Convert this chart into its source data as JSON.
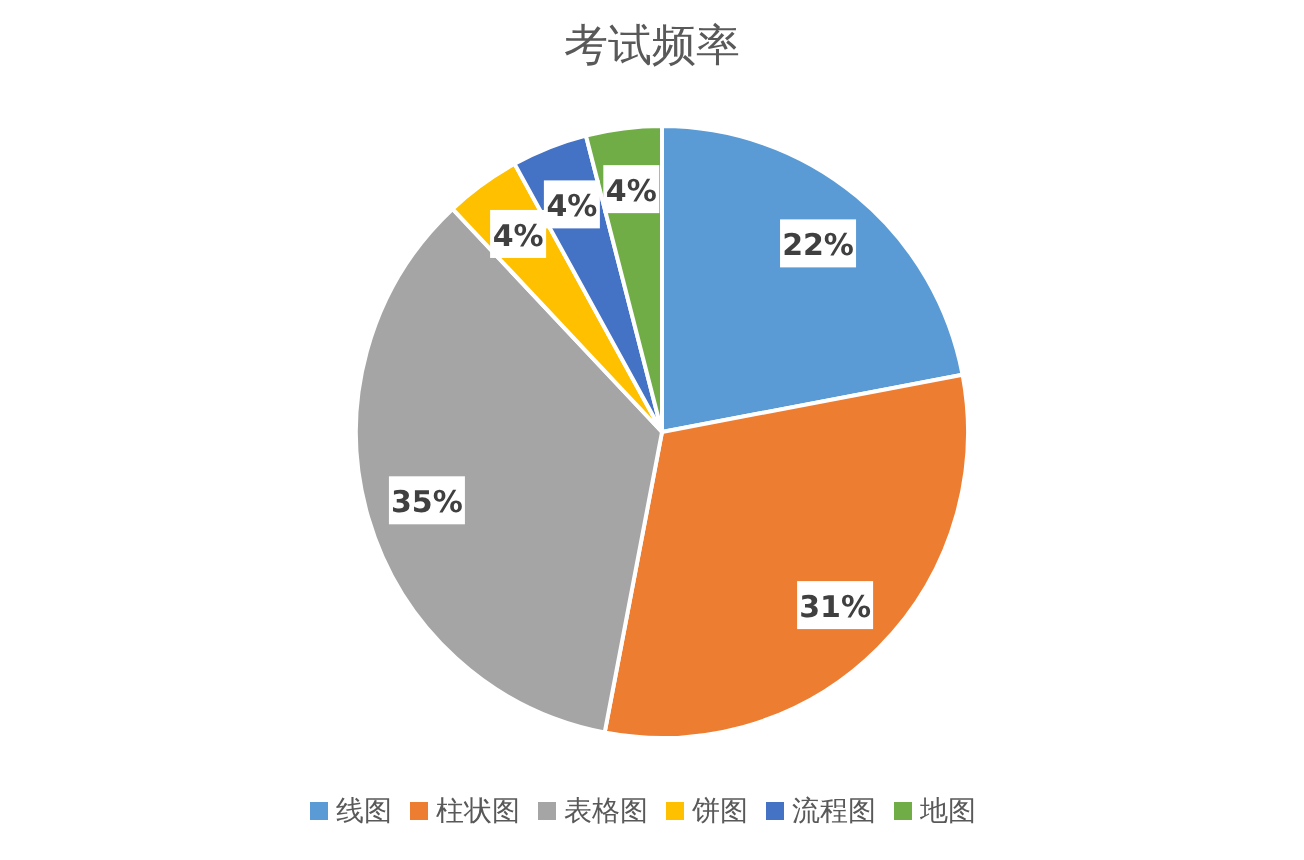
{
  "chart_data": {
    "type": "pie",
    "title": "考试频率",
    "categories": [
      "线图",
      "柱状图",
      "表格图",
      "饼图",
      "流程图",
      "地图"
    ],
    "values": [
      22,
      31,
      35,
      4,
      4,
      4
    ],
    "colors": [
      "#5b9bd5",
      "#ed7d31",
      "#a5a5a5",
      "#ffc000",
      "#4472c4",
      "#70ad47"
    ],
    "value_labels": [
      "22%",
      "31%",
      "35%",
      "4%",
      "4%",
      "4%"
    ],
    "legend": "bottom"
  }
}
